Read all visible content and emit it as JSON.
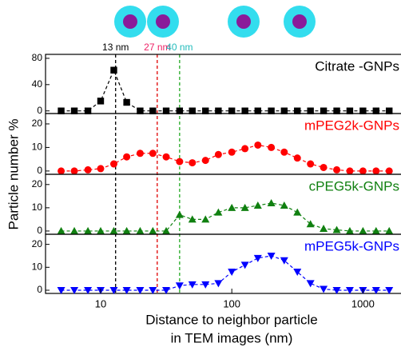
{
  "ylabel": "Particle number %",
  "xlabel": [
    "Distance to neighbor particle",
    "in TEM images (nm)"
  ],
  "log_x": true,
  "xlim": [
    3.8,
    1950
  ],
  "xticks": [
    10,
    100,
    1000
  ],
  "x": [
    5,
    6.3,
    8,
    10,
    12.6,
    15.8,
    20,
    25,
    31.6,
    40,
    50,
    63,
    79,
    100,
    126,
    158,
    200,
    251,
    316,
    398,
    501,
    631,
    794,
    1000,
    1259,
    1585
  ],
  "reference_lines": [
    {
      "value": 13,
      "label": "13 nm",
      "line_color": "#000000",
      "label_color": "#000000"
    },
    {
      "value": 27,
      "label": "27 nm",
      "line_color": "#e00000",
      "label_color": "#ee2266"
    },
    {
      "value": 40,
      "label": "40 nm",
      "line_color": "#22aa22",
      "label_color": "#22bbbb"
    }
  ],
  "chart_data": [
    {
      "type": "line",
      "label": "Citrate -GNPs",
      "color": "#000000",
      "marker": "square",
      "ylim": [
        -4,
        86
      ],
      "yticks": [
        0,
        40,
        80
      ],
      "values": [
        0,
        0,
        0,
        15,
        62,
        13,
        0,
        0,
        0,
        0,
        0,
        0,
        0,
        0,
        0,
        0,
        0,
        0,
        0,
        0,
        0,
        0,
        0,
        0,
        0,
        0
      ]
    },
    {
      "type": "line",
      "label": "mPEG2k-GNPs",
      "color": "#ff0000",
      "marker": "circle",
      "ylim": [
        -1.4,
        24.4
      ],
      "yticks": [
        0,
        10,
        20
      ],
      "values": [
        0,
        0,
        0.5,
        1,
        3,
        6,
        7.5,
        7.5,
        6,
        4,
        3.5,
        4.5,
        7,
        8,
        9.5,
        11,
        10,
        8,
        5.5,
        3,
        1.5,
        0.5,
        0,
        0,
        0,
        0
      ]
    },
    {
      "type": "line",
      "label": "cPEG5k-GNPs",
      "color": "#108010",
      "marker": "triangle-up",
      "ylim": [
        -1.4,
        24.4
      ],
      "yticks": [
        0,
        10,
        20
      ],
      "values": [
        0,
        0,
        0,
        0,
        0,
        0,
        0,
        0,
        0,
        7,
        5,
        5,
        8,
        10,
        10,
        11,
        12,
        11,
        8,
        3,
        1,
        0.5,
        0,
        0,
        0,
        0
      ]
    },
    {
      "type": "line",
      "label": "mPEG5k-GNPs",
      "color": "#0000ff",
      "marker": "triangle-down",
      "ylim": [
        -1.4,
        24.4
      ],
      "yticks": [
        0,
        10,
        20
      ],
      "values": [
        0,
        0,
        0,
        0,
        0,
        0,
        0,
        0,
        0,
        2,
        2.5,
        2.5,
        3,
        8,
        11,
        14,
        15,
        13,
        8,
        3,
        0.5,
        0,
        0,
        0,
        0,
        0
      ]
    }
  ]
}
